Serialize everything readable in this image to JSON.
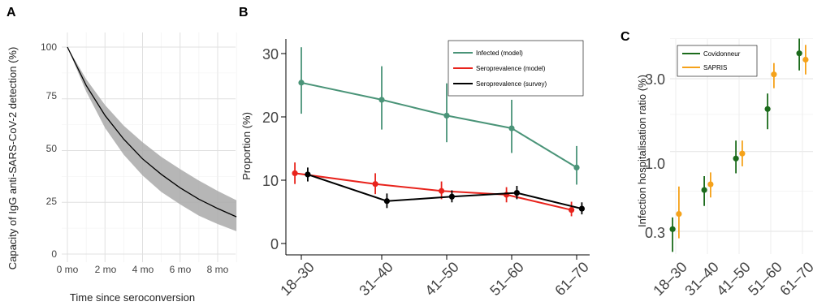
{
  "chart_data": [
    {
      "panel": "A",
      "type": "area",
      "xlabel": "Time since seroconversion",
      "ylabel": "Capacity of IgG anti-SARS-CoV-2 detection (%)",
      "x_ticks": [
        "0 mo",
        "2 mo",
        "4 mo",
        "6 mo",
        "8 mo"
      ],
      "y_ticks": [
        "0",
        "25",
        "50",
        "75",
        "100"
      ],
      "xlim": [
        0,
        9
      ],
      "ylim": [
        0,
        105
      ],
      "grid": true,
      "x": [
        0,
        1,
        2,
        3,
        4,
        5,
        6,
        7,
        8,
        9
      ],
      "series": [
        {
          "values": [
            100,
            81.5,
            67,
            55.5,
            46,
            38.5,
            32,
            26.5,
            22,
            18
          ],
          "lower": [
            100,
            78.5,
            61,
            48,
            38,
            30,
            24,
            18.5,
            14.5,
            11
          ],
          "upper": [
            100,
            84.5,
            72,
            62,
            54,
            47,
            41,
            35.5,
            30.5,
            26
          ]
        }
      ],
      "colors": {
        "line": "#000000",
        "band": "#a9a9a9"
      }
    },
    {
      "panel": "B",
      "type": "line",
      "ylabel": "Proportion (%)",
      "categories": [
        "18–30",
        "31–40",
        "41–50",
        "51–60",
        "61–70"
      ],
      "y_ticks": [
        "0",
        "10",
        "20",
        "30"
      ],
      "ylim": [
        0,
        32
      ],
      "legend": "top-right",
      "series": [
        {
          "name": "Infected (model)",
          "color": "#4a9478",
          "x": [
            0,
            1,
            2,
            3,
            4
          ],
          "values": [
            25.4,
            22.7,
            20.2,
            18.2,
            12.0
          ],
          "lower": [
            20.5,
            18.0,
            16.0,
            14.3,
            9.3
          ],
          "upper": [
            31.0,
            28.0,
            25.3,
            22.7,
            15.4
          ]
        },
        {
          "name": "Seroprevalence (model)",
          "color": "#e8231c",
          "x": [
            -0.08,
            0.92,
            1.92,
            2.92,
            3.92
          ],
          "values": [
            11.1,
            9.4,
            8.3,
            7.7,
            5.3
          ],
          "lower": [
            9.4,
            7.8,
            7.0,
            6.5,
            4.3
          ],
          "upper": [
            12.8,
            11.1,
            9.8,
            8.9,
            6.6
          ]
        },
        {
          "name": "Seroprevalence (survey)",
          "color": "#000000",
          "x": [
            0.08,
            1.08,
            2.08,
            3.08,
            4.08
          ],
          "values": [
            10.9,
            6.7,
            7.4,
            8.0,
            5.5
          ],
          "lower": [
            9.8,
            5.6,
            6.5,
            7.0,
            4.6
          ],
          "upper": [
            12.0,
            7.9,
            8.4,
            9.1,
            6.5
          ]
        }
      ]
    },
    {
      "panel": "C",
      "type": "scatter",
      "ylabel": "Infection hospitalisation ratio (%)",
      "categories": [
        "18–30",
        "31–40",
        "41–50",
        "51–60",
        "61–70"
      ],
      "y_ticks": [
        "0.3",
        "1.0",
        "3.0"
      ],
      "y_scale": "log",
      "ylim": [
        0.2,
        6.5
      ],
      "legend": "top-left",
      "series": [
        {
          "name": "Covidonneur",
          "color": "#1b6b1b",
          "x": [
            -0.1,
            0.9,
            1.9,
            2.9,
            3.9
          ],
          "values": [
            0.31,
            0.56,
            0.9,
            1.9,
            4.4
          ],
          "lower": [
            0.22,
            0.44,
            0.72,
            1.4,
            3.4
          ],
          "upper": [
            0.37,
            0.69,
            1.18,
            2.4,
            5.5
          ]
        },
        {
          "name": "SAPRIS",
          "color": "#f5a21a",
          "x": [
            0.1,
            1.1,
            2.1,
            3.1,
            4.1
          ],
          "values": [
            0.39,
            0.61,
            0.97,
            3.2,
            4.0
          ],
          "lower": [
            0.27,
            0.5,
            0.8,
            2.6,
            3.2
          ],
          "upper": [
            0.59,
            0.73,
            1.18,
            3.8,
            5.0
          ]
        }
      ]
    }
  ],
  "panels": {
    "a": "A",
    "b": "B",
    "c": "C"
  },
  "panel_a": {
    "xlabel": "Time since seroconversion",
    "ylabel": "Capacity of IgG anti-SARS-CoV-2 detection (%)",
    "x_ticks": [
      "0 mo",
      "2 mo",
      "4 mo",
      "6 mo",
      "8 mo"
    ],
    "y_ticks": [
      "0",
      "25",
      "50",
      "75",
      "100"
    ]
  },
  "panel_b": {
    "ylabel": "Proportion (%)",
    "y_ticks": [
      "0",
      "10",
      "20",
      "30"
    ],
    "categories": [
      "18–30",
      "31–40",
      "41–50",
      "51–60",
      "61–70"
    ],
    "legend": [
      "Infected (model)",
      "Seroprevalence (model)",
      "Seroprevalence (survey)"
    ]
  },
  "panel_c": {
    "ylabel": "Infection hospitalisation ratio (%)",
    "y_ticks": [
      "0.3",
      "1.0",
      "3.0"
    ],
    "categories": [
      "18–30",
      "31–40",
      "41–50",
      "51–60",
      "61–70"
    ],
    "legend": [
      "Covidonneur",
      "SAPRIS"
    ]
  }
}
